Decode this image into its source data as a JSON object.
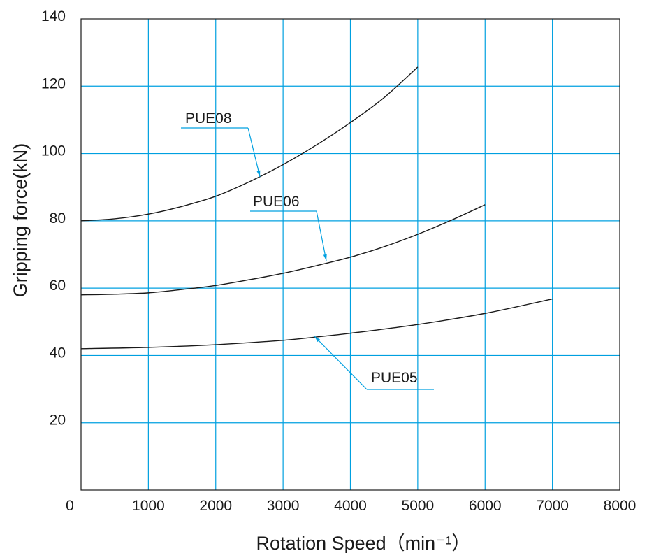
{
  "chart_data": {
    "type": "line",
    "xlabel": "Rotation Speed（min⁻¹）",
    "ylabel": "Gripping force(kN)",
    "xlim": [
      0,
      8000
    ],
    "ylim": [
      0,
      140
    ],
    "x_ticks": [
      "0",
      "1000",
      "2000",
      "3000",
      "4000",
      "5000",
      "6000",
      "7000",
      "8000"
    ],
    "y_ticks": [
      "20",
      "40",
      "60",
      "80",
      "100",
      "120",
      "140"
    ],
    "grid": true,
    "grid_color": "#00a0e0",
    "line_color": "#1a1a1a",
    "leader_color": "#00a0e0",
    "series": [
      {
        "name": "PUE08",
        "x": [
          0,
          500,
          1000,
          1500,
          2000,
          2500,
          3000,
          3500,
          4000,
          4500,
          5000
        ],
        "y": [
          80,
          80.6,
          82,
          84.3,
          87.3,
          91.6,
          96.7,
          102.6,
          109.2,
          116.6,
          125.7
        ]
      },
      {
        "name": "PUE06",
        "x": [
          0,
          500,
          1000,
          1500,
          2000,
          2500,
          3000,
          3500,
          4000,
          4500,
          5000,
          5500,
          6000
        ],
        "y": [
          58,
          58.2,
          58.6,
          59.6,
          60.8,
          62.5,
          64.4,
          66.7,
          69.2,
          72.3,
          76,
          80.2,
          84.8
        ]
      },
      {
        "name": "PUE05",
        "x": [
          0,
          1000,
          2000,
          3000,
          3500,
          4000,
          5000,
          6000,
          7000
        ],
        "y": [
          42,
          42.4,
          43.2,
          44.5,
          45.5,
          46.6,
          49.2,
          52.5,
          56.8
        ]
      }
    ]
  }
}
